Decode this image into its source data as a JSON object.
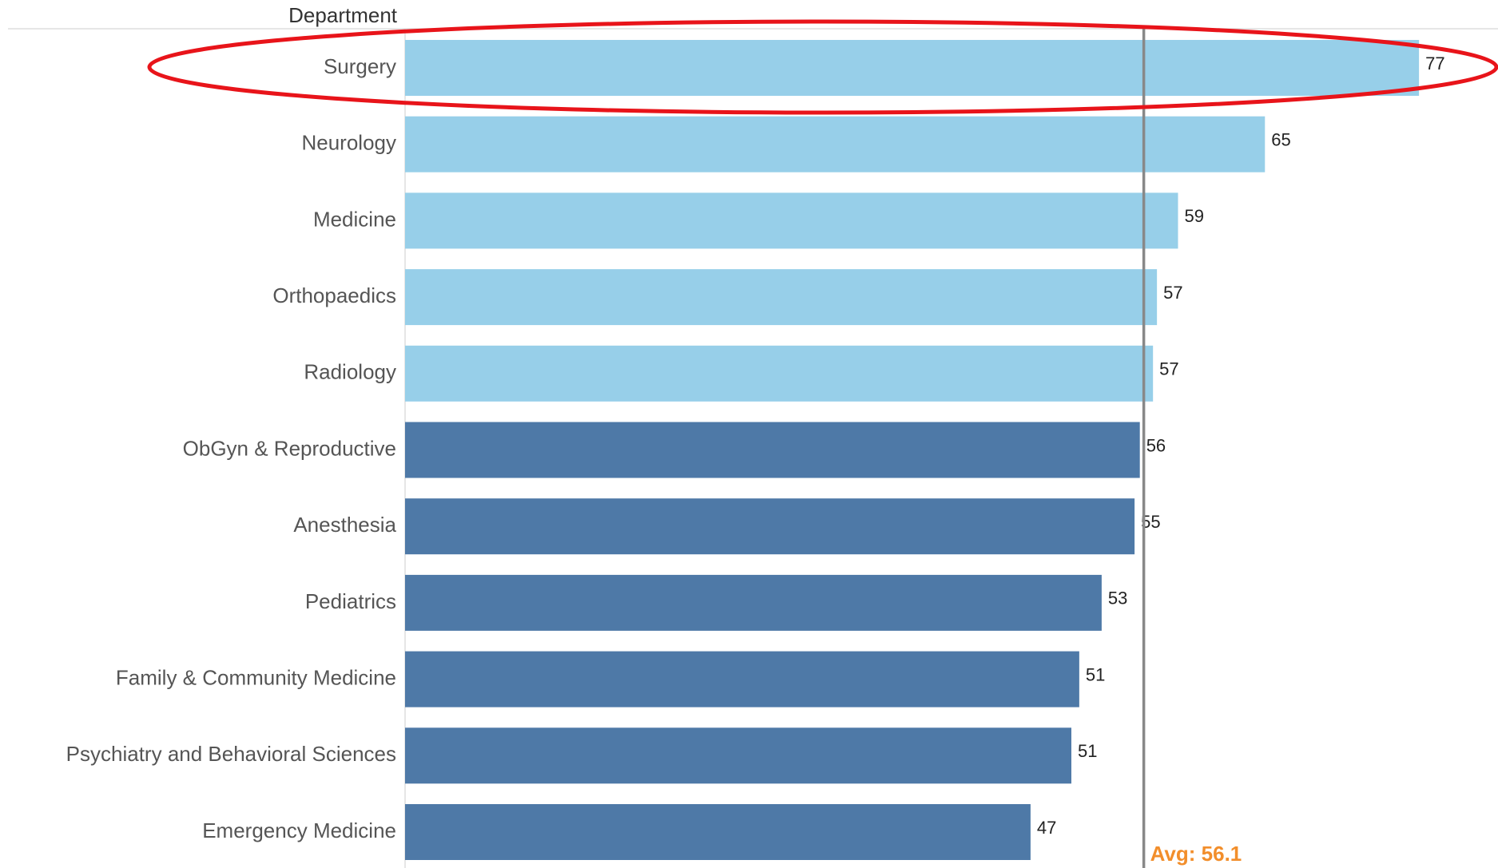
{
  "chart_data": {
    "type": "bar",
    "orientation": "horizontal",
    "y_axis_label": "Department",
    "categories": [
      "Surgery",
      "Neurology",
      "Medicine",
      "Orthopaedics",
      "Radiology",
      "ObGyn & Reproductive",
      "Anesthesia",
      "Pediatrics",
      "Family & Community Medicine",
      "Psychiatry and Behavioral Sciences",
      "Emergency Medicine"
    ],
    "values": [
      77,
      65.3,
      58.7,
      57.1,
      56.8,
      55.8,
      55.4,
      52.9,
      51.2,
      50.6,
      47.5
    ],
    "value_labels": [
      "77",
      "65",
      "59",
      "57",
      "57",
      "56",
      "55",
      "53",
      "51",
      "51",
      "47"
    ],
    "colors": [
      "#97cfe9",
      "#97cfe9",
      "#97cfe9",
      "#97cfe9",
      "#97cfe9",
      "#4e79a7",
      "#4e79a7",
      "#4e79a7",
      "#4e79a7",
      "#4e79a7",
      "#4e79a7"
    ],
    "xlim": [
      0,
      83
    ],
    "reference_line": {
      "value": 56.1,
      "label": "Avg: 56.1",
      "color": "#f28e2b"
    }
  }
}
